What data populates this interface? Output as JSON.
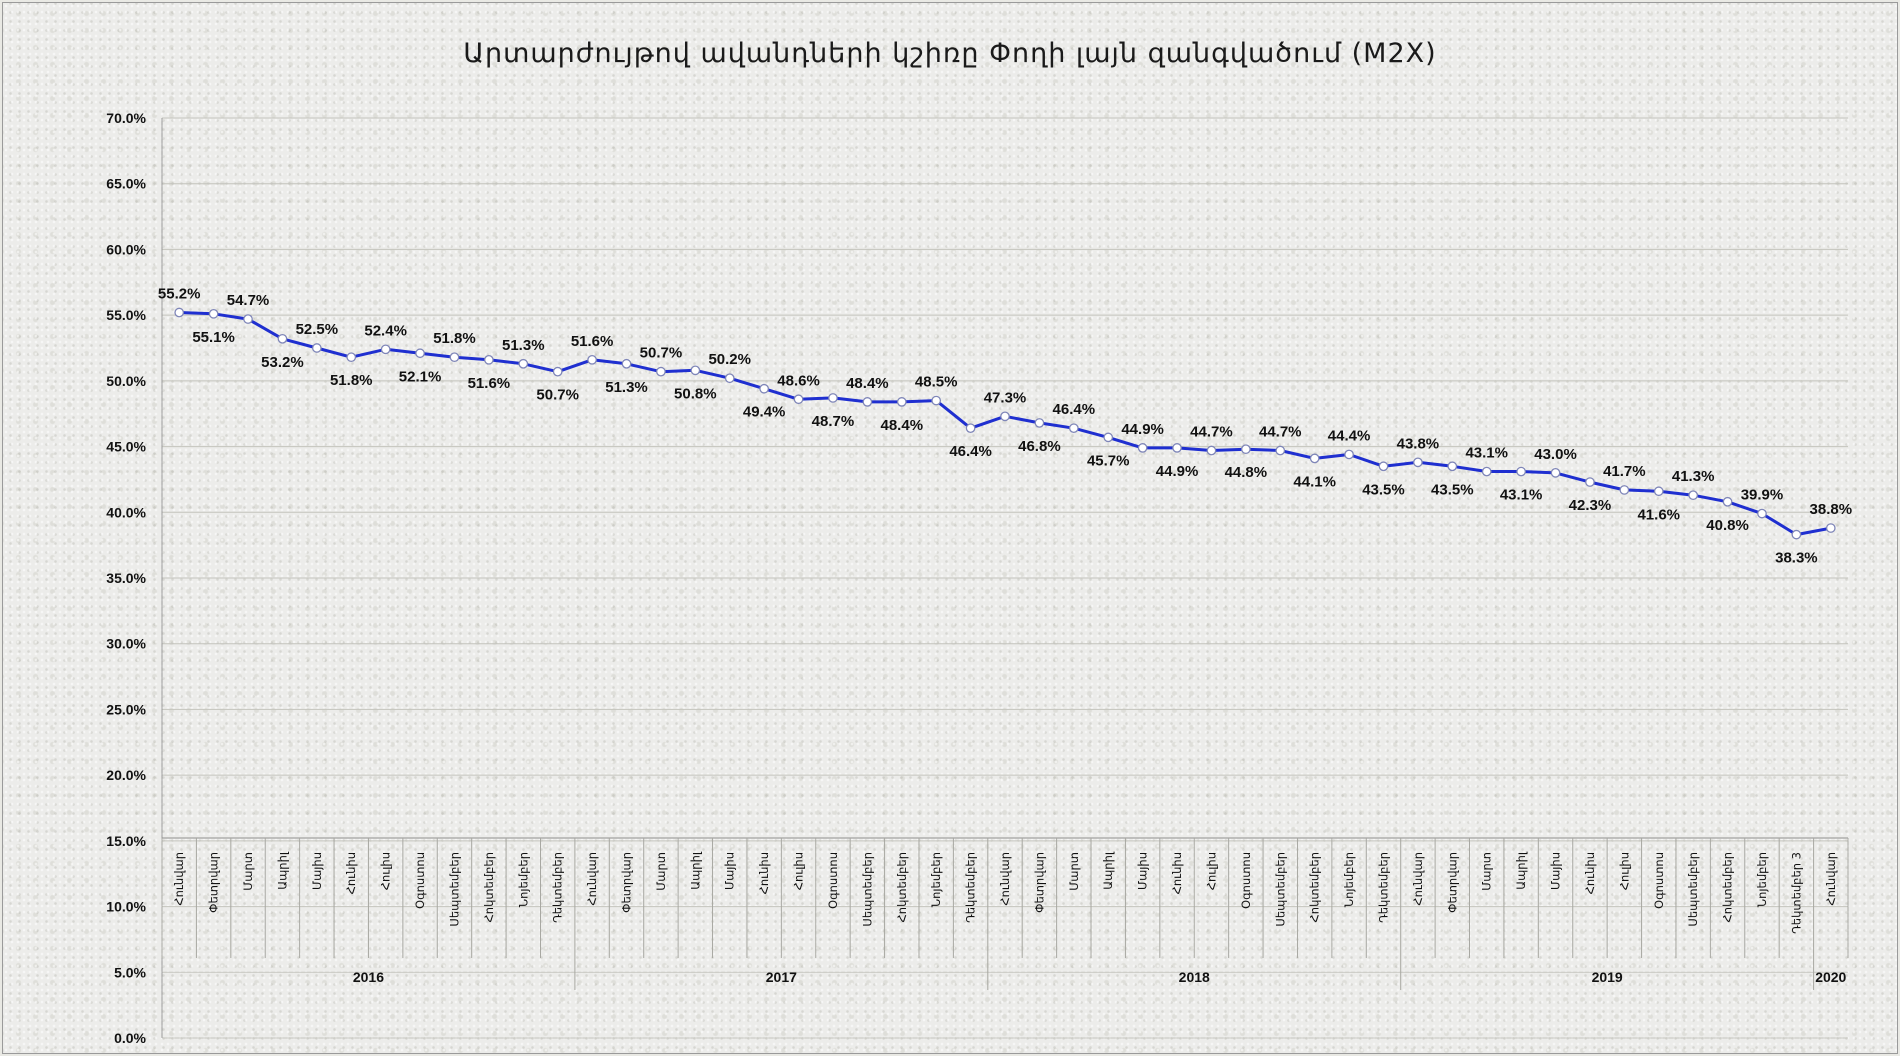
{
  "chart_data": {
    "type": "line",
    "title": "Արտարժույթով ավանդների կշիռը Փողի լայն զանգվածում (M2X)",
    "xlabel": "",
    "ylabel": "",
    "ylim": [
      0,
      70
    ],
    "y_ticks": [
      "0.0%",
      "5.0%",
      "10.0%",
      "15.0%",
      "20.0%",
      "25.0%",
      "30.0%",
      "35.0%",
      "40.0%",
      "45.0%",
      "50.0%",
      "55.0%",
      "60.0%",
      "65.0%",
      "70.0%"
    ],
    "grid": true,
    "legend": "none",
    "line_color": "#1f2fd0",
    "marker_fill": "#ffffff",
    "categories": [
      "Հունվար",
      "Փետրվար",
      "Մարտ",
      "Ապրիլ",
      "Մայիս",
      "Հունիս",
      "Հուլիս",
      "Օգոստոս",
      "Սեպտեմբեր",
      "Հոկտեմբեր",
      "Նոյեմբեր",
      "Դեկտեմբեր",
      "Հունվար",
      "Փետրվար",
      "Մարտ",
      "Ապրիլ",
      "Մայիս",
      "Հունիս",
      "Հուլիս",
      "Օգոստոս",
      "Սեպտեմբեր",
      "Հոկտեմբեր",
      "Նոյեմբեր",
      "Դեկտեմբեր",
      "Հունվար",
      "Փետրվար",
      "Մարտ",
      "Ապրիլ",
      "Մայիս",
      "Հունիս",
      "Հուլիս",
      "Օգոստոս",
      "Սեպտեմբեր",
      "Հոկտեմբեր",
      "Նոյեմբեր",
      "Դեկտեմբեր",
      "Հունվար",
      "Փետրվար",
      "Մարտ",
      "Ապրիլ",
      "Մայիս",
      "Հունիս",
      "Հուլիս",
      "Օգոստոս",
      "Սեպտեմբեր",
      "Հոկտեմբեր",
      "Նոյեմբեր",
      "Դեկտեմբեր 3",
      "Հունվար"
    ],
    "years": [
      {
        "label": "2016",
        "count": 12
      },
      {
        "label": "2017",
        "count": 12
      },
      {
        "label": "2018",
        "count": 12
      },
      {
        "label": "2019",
        "count": 12
      },
      {
        "label": "2020",
        "count": 1
      }
    ],
    "values": [
      55.2,
      55.1,
      54.7,
      53.2,
      52.5,
      51.8,
      52.4,
      52.1,
      51.8,
      51.6,
      51.3,
      50.7,
      51.6,
      51.3,
      50.7,
      50.8,
      50.2,
      49.4,
      48.6,
      48.7,
      48.4,
      48.4,
      48.5,
      46.4,
      47.3,
      46.8,
      46.4,
      45.7,
      44.9,
      44.9,
      44.7,
      44.8,
      44.7,
      44.1,
      44.4,
      43.5,
      43.8,
      43.5,
      43.1,
      43.1,
      43.0,
      42.3,
      41.7,
      41.6,
      41.3,
      40.8,
      39.9,
      38.3,
      38.8
    ],
    "data_labels": [
      "55.2%",
      "55.1%",
      "54.7%",
      "53.2%",
      "52.5%",
      "51.8%",
      "52.4%",
      "52.1%",
      "51.8%",
      "51.6%",
      "51.3%",
      "50.7%",
      "51.6%",
      "51.3%",
      "50.7%",
      "50.8%",
      "50.2%",
      "49.4%",
      "48.6%",
      "48.7%",
      "48.4%",
      "48.4%",
      "48.5%",
      "46.4%",
      "47.3%",
      "46.8%",
      "46.4%",
      "45.7%",
      "44.9%",
      "44.9%",
      "44.7%",
      "44.8%",
      "44.7%",
      "44.1%",
      "44.4%",
      "43.5%",
      "43.8%",
      "43.5%",
      "43.1%",
      "43.1%",
      "43.0%",
      "42.3%",
      "41.7%",
      "41.6%",
      "41.3%",
      "40.8%",
      "39.9%",
      "38.3%",
      "38.8%"
    ],
    "label_positions": [
      "above",
      "below",
      "above",
      "below",
      "above",
      "below",
      "above",
      "below",
      "above",
      "below",
      "above",
      "below",
      "above",
      "below",
      "above",
      "below",
      "above",
      "below",
      "above",
      "below",
      "above",
      "below",
      "above",
      "below",
      "above",
      "below",
      "above",
      "below",
      "above",
      "below",
      "above",
      "below",
      "above",
      "below",
      "above",
      "below",
      "above",
      "below",
      "above",
      "below",
      "above",
      "below",
      "above",
      "below",
      "above",
      "below",
      "above",
      "below",
      "above"
    ]
  }
}
